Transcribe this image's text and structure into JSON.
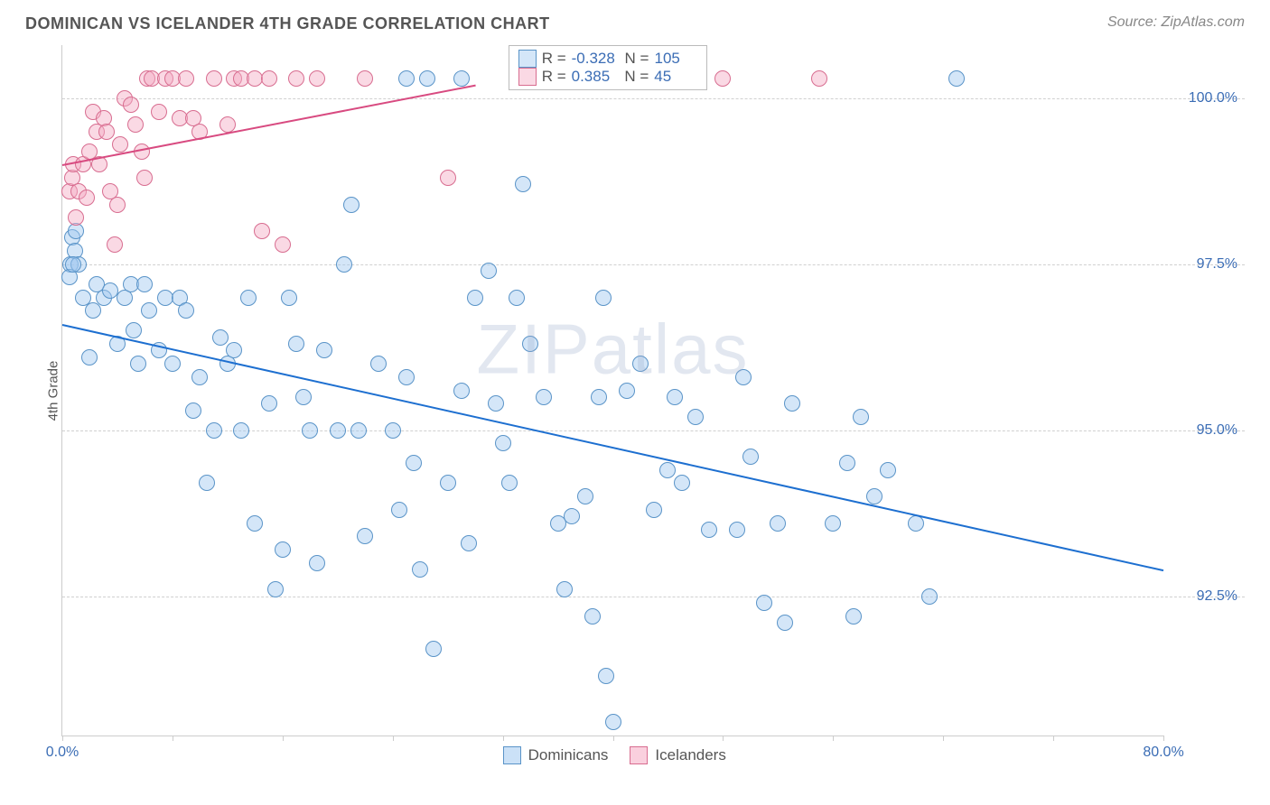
{
  "title": "DOMINICAN VS ICELANDER 4TH GRADE CORRELATION CHART",
  "source": "Source: ZipAtlas.com",
  "watermark": "ZIPatlas",
  "chart": {
    "type": "scatter",
    "ylabel": "4th Grade",
    "xlim": [
      0,
      80
    ],
    "ylim": [
      90.4,
      100.8
    ],
    "xtick_positions": [
      0,
      8,
      16,
      24,
      32,
      40,
      48,
      56,
      64,
      72,
      80
    ],
    "xtick_labels": {
      "0": "0.0%",
      "80": "80.0%"
    },
    "ytick_positions": [
      92.5,
      95.0,
      97.5,
      100.0
    ],
    "ytick_labels": [
      "92.5%",
      "95.0%",
      "97.5%",
      "100.0%"
    ],
    "grid_color": "#d0d0d0",
    "background_color": "#ffffff",
    "axis_color": "#cccccc",
    "label_color": "#3b6db5",
    "marker_radius": 9,
    "marker_stroke_width": 1.2,
    "series": [
      {
        "name": "Dominicans",
        "fill": "rgba(160,200,240,0.45)",
        "stroke": "#5a94c8",
        "R": "-0.328",
        "N": "105",
        "trend": {
          "x1": 0,
          "y1": 96.6,
          "x2": 80,
          "y2": 92.9,
          "color": "#1d6fd0",
          "width": 2
        },
        "points": [
          [
            0.6,
            97.5
          ],
          [
            0.7,
            97.9
          ],
          [
            0.9,
            97.7
          ],
          [
            1.0,
            98.0
          ],
          [
            0.5,
            97.3
          ],
          [
            1.2,
            97.5
          ],
          [
            0.8,
            97.5
          ],
          [
            1.5,
            97.0
          ],
          [
            2.0,
            96.1
          ],
          [
            2.2,
            96.8
          ],
          [
            2.5,
            97.2
          ],
          [
            3.0,
            97.0
          ],
          [
            3.5,
            97.1
          ],
          [
            4.0,
            96.3
          ],
          [
            4.5,
            97.0
          ],
          [
            5.0,
            97.2
          ],
          [
            5.2,
            96.5
          ],
          [
            5.5,
            96.0
          ],
          [
            6.0,
            97.2
          ],
          [
            6.3,
            96.8
          ],
          [
            7.0,
            96.2
          ],
          [
            7.5,
            97.0
          ],
          [
            8.0,
            96.0
          ],
          [
            8.5,
            97.0
          ],
          [
            9.0,
            96.8
          ],
          [
            9.5,
            95.3
          ],
          [
            10.0,
            95.8
          ],
          [
            10.5,
            94.2
          ],
          [
            11.0,
            95.0
          ],
          [
            11.5,
            96.4
          ],
          [
            12.0,
            96.0
          ],
          [
            12.5,
            96.2
          ],
          [
            13.0,
            95.0
          ],
          [
            13.5,
            97.0
          ],
          [
            14.0,
            93.6
          ],
          [
            15.0,
            95.4
          ],
          [
            15.5,
            92.6
          ],
          [
            16.0,
            93.2
          ],
          [
            16.5,
            97.0
          ],
          [
            17.0,
            96.3
          ],
          [
            17.5,
            95.5
          ],
          [
            18.0,
            95.0
          ],
          [
            18.5,
            93.0
          ],
          [
            19.0,
            96.2
          ],
          [
            20.0,
            95.0
          ],
          [
            20.5,
            97.5
          ],
          [
            21.0,
            98.4
          ],
          [
            21.5,
            95.0
          ],
          [
            22.0,
            93.4
          ],
          [
            23.0,
            96.0
          ],
          [
            24.0,
            95.0
          ],
          [
            24.5,
            93.8
          ],
          [
            25.0,
            95.8
          ],
          [
            25.5,
            94.5
          ],
          [
            26.0,
            92.9
          ],
          [
            27.0,
            91.7
          ],
          [
            28.0,
            94.2
          ],
          [
            29.0,
            95.6
          ],
          [
            29.5,
            93.3
          ],
          [
            30.0,
            97.0
          ],
          [
            31.0,
            97.4
          ],
          [
            31.5,
            95.4
          ],
          [
            32.0,
            94.8
          ],
          [
            32.5,
            94.2
          ],
          [
            33.0,
            97.0
          ],
          [
            33.5,
            98.7
          ],
          [
            34.0,
            96.3
          ],
          [
            35.0,
            95.5
          ],
          [
            36.0,
            93.6
          ],
          [
            36.5,
            92.6
          ],
          [
            37.0,
            93.7
          ],
          [
            38.0,
            94.0
          ],
          [
            38.5,
            92.2
          ],
          [
            39.0,
            95.5
          ],
          [
            39.3,
            97.0
          ],
          [
            39.5,
            91.3
          ],
          [
            40.0,
            90.6
          ],
          [
            41.0,
            95.6
          ],
          [
            42.0,
            96.0
          ],
          [
            43.0,
            93.8
          ],
          [
            44.0,
            94.4
          ],
          [
            44.5,
            95.5
          ],
          [
            45.0,
            94.2
          ],
          [
            46.0,
            95.2
          ],
          [
            47.0,
            93.5
          ],
          [
            49.0,
            93.5
          ],
          [
            49.5,
            95.8
          ],
          [
            50.0,
            94.6
          ],
          [
            51.0,
            92.4
          ],
          [
            52.0,
            93.6
          ],
          [
            52.5,
            92.1
          ],
          [
            53.0,
            95.4
          ],
          [
            56.0,
            93.6
          ],
          [
            57.0,
            94.5
          ],
          [
            57.5,
            92.2
          ],
          [
            58.0,
            95.2
          ],
          [
            59.0,
            94.0
          ],
          [
            60.0,
            94.4
          ],
          [
            62.0,
            93.6
          ],
          [
            63.0,
            92.5
          ],
          [
            38.0,
            100.3
          ],
          [
            25.0,
            100.3
          ],
          [
            26.5,
            100.3
          ],
          [
            35.5,
            100.3
          ],
          [
            29.0,
            100.3
          ],
          [
            65.0,
            100.3
          ]
        ]
      },
      {
        "name": "Icelanders",
        "fill": "rgba(245,170,195,0.45)",
        "stroke": "#d86d90",
        "R": "0.385",
        "N": "45",
        "trend": {
          "x1": 0,
          "y1": 99.0,
          "x2": 30,
          "y2": 100.2,
          "color": "#d84a80",
          "width": 2
        },
        "points": [
          [
            0.5,
            98.6
          ],
          [
            0.7,
            98.8
          ],
          [
            0.8,
            99.0
          ],
          [
            1.0,
            98.2
          ],
          [
            1.2,
            98.6
          ],
          [
            1.5,
            99.0
          ],
          [
            1.8,
            98.5
          ],
          [
            2.0,
            99.2
          ],
          [
            2.2,
            99.8
          ],
          [
            2.5,
            99.5
          ],
          [
            2.7,
            99.0
          ],
          [
            3.0,
            99.7
          ],
          [
            3.2,
            99.5
          ],
          [
            3.5,
            98.6
          ],
          [
            3.8,
            97.8
          ],
          [
            4.0,
            98.4
          ],
          [
            4.2,
            99.3
          ],
          [
            4.5,
            100.0
          ],
          [
            5.0,
            99.9
          ],
          [
            5.3,
            99.6
          ],
          [
            5.8,
            99.2
          ],
          [
            6.0,
            98.8
          ],
          [
            6.2,
            100.3
          ],
          [
            6.5,
            100.3
          ],
          [
            7.0,
            99.8
          ],
          [
            7.5,
            100.3
          ],
          [
            8.0,
            100.3
          ],
          [
            8.5,
            99.7
          ],
          [
            9.0,
            100.3
          ],
          [
            9.5,
            99.7
          ],
          [
            10.0,
            99.5
          ],
          [
            11.0,
            100.3
          ],
          [
            12.0,
            99.6
          ],
          [
            12.5,
            100.3
          ],
          [
            13.0,
            100.3
          ],
          [
            14.0,
            100.3
          ],
          [
            14.5,
            98.0
          ],
          [
            15.0,
            100.3
          ],
          [
            16.0,
            97.8
          ],
          [
            17.0,
            100.3
          ],
          [
            18.5,
            100.3
          ],
          [
            22.0,
            100.3
          ],
          [
            28.0,
            98.8
          ],
          [
            48.0,
            100.3
          ],
          [
            55.0,
            100.3
          ]
        ]
      }
    ],
    "bottom_legend": [
      {
        "label": "Dominicans",
        "fill": "rgba(160,200,240,0.55)",
        "stroke": "#5a94c8"
      },
      {
        "label": "Icelanders",
        "fill": "rgba(245,170,195,0.55)",
        "stroke": "#d86d90"
      }
    ]
  }
}
